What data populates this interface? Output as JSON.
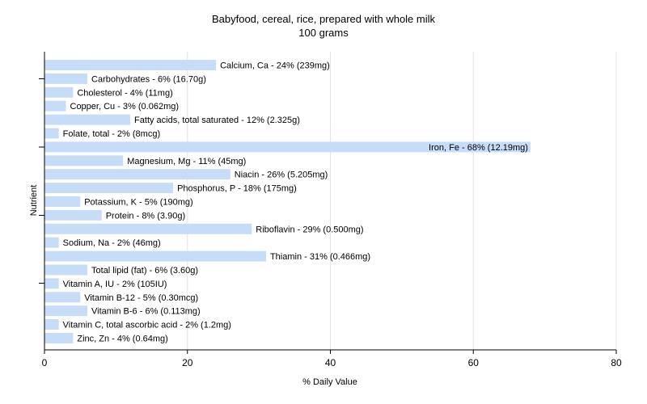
{
  "chart_data": {
    "type": "bar",
    "orientation": "horizontal",
    "title": "Babyfood, cereal, rice, prepared with whole milk",
    "subtitle": "100 grams",
    "xlabel": "% Daily Value",
    "ylabel": "Nutrient",
    "xlim": [
      0,
      80
    ],
    "xticks": [
      0,
      20,
      40,
      60,
      80
    ],
    "grid": "vertical",
    "bar_color": "#c6dcf7",
    "categories": [
      "Calcium, Ca",
      "Carbohydrates",
      "Cholesterol",
      "Copper, Cu",
      "Fatty acids, total saturated",
      "Folate, total",
      "Iron, Fe",
      "Magnesium, Mg",
      "Niacin",
      "Phosphorus, P",
      "Potassium, K",
      "Protein",
      "Riboflavin",
      "Sodium, Na",
      "Thiamin",
      "Total lipid (fat)",
      "Vitamin A, IU",
      "Vitamin B-12",
      "Vitamin B-6",
      "Vitamin C, total ascorbic acid",
      "Zinc, Zn"
    ],
    "values": [
      24,
      6,
      4,
      3,
      12,
      2,
      68,
      11,
      26,
      18,
      5,
      8,
      29,
      2,
      31,
      6,
      2,
      5,
      6,
      2,
      4
    ],
    "labels": [
      "Calcium, Ca - 24% (239mg)",
      "Carbohydrates - 6% (16.70g)",
      "Cholesterol - 4% (11mg)",
      "Copper, Cu - 3% (0.062mg)",
      "Fatty acids, total saturated - 12% (2.325g)",
      "Folate, total - 2% (8mcg)",
      "Iron, Fe - 68% (12.19mg)",
      "Magnesium, Mg - 11% (45mg)",
      "Niacin - 26% (5.205mg)",
      "Phosphorus, P - 18% (175mg)",
      "Potassium, K - 5% (190mg)",
      "Protein - 8% (3.90g)",
      "Riboflavin - 29% (0.500mg)",
      "Sodium, Na - 2% (46mg)",
      "Thiamin - 31% (0.466mg)",
      "Total lipid (fat) - 6% (3.60g)",
      "Vitamin A, IU - 2% (105IU)",
      "Vitamin B-12 - 5% (0.30mcg)",
      "Vitamin B-6 - 6% (0.113mg)",
      "Vitamin C, total ascorbic acid - 2% (1.2mg)",
      "Zinc, Zn - 4% (0.64mg)"
    ]
  }
}
